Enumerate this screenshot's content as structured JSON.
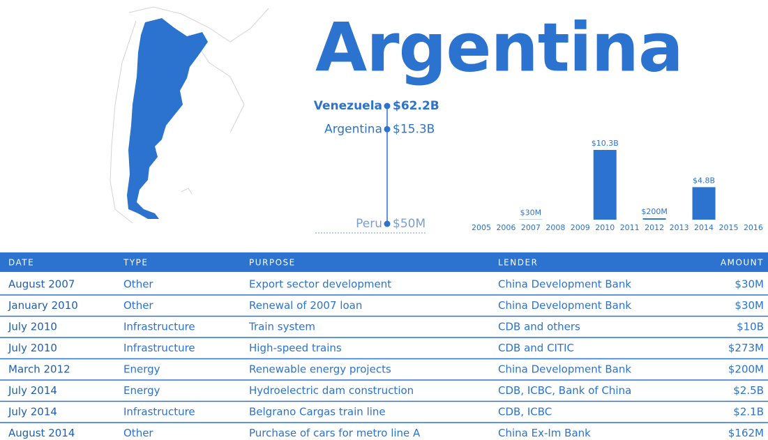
{
  "title": "Argentina",
  "ranking": {
    "log": true,
    "items": [
      {
        "name": "Venezuela",
        "value": 62.2,
        "label": "$62.2B"
      },
      {
        "name": "Argentina",
        "value": 15.3,
        "label": "$15.3B"
      },
      {
        "name": "Peru",
        "value": 0.05,
        "label": "$50M"
      }
    ]
  },
  "chart_data": {
    "type": "bar",
    "color": "#2b73cf",
    "categories": [
      "2005",
      "2006",
      "2007",
      "2008",
      "2009",
      "2010",
      "2011",
      "2012",
      "2013",
      "2014",
      "2015",
      "2016"
    ],
    "values": [
      0,
      0,
      0.03,
      0,
      0,
      10.3,
      0,
      0.2,
      0,
      4.8,
      0,
      0
    ],
    "value_labels": [
      null,
      null,
      "$30M",
      null,
      null,
      "$10.3B",
      null,
      "$200M",
      null,
      "$4.8B",
      null,
      null
    ]
  },
  "table": {
    "columns": [
      "DATE",
      "TYPE",
      "PURPOSE",
      "LENDER",
      "AMOUNT"
    ],
    "rows": [
      [
        "August 2007",
        "Other",
        "Export sector development",
        "China Development Bank",
        "$30M"
      ],
      [
        "January 2010",
        "Other",
        "Renewal of 2007 loan",
        "China Development Bank",
        "$30M"
      ],
      [
        "July 2010",
        "Infrastructure",
        "Train system",
        "CDB and others",
        "$10B"
      ],
      [
        "July 2010",
        "Infrastructure",
        "High-speed trains",
        "CDB and CITIC",
        "$273M"
      ],
      [
        "March 2012",
        "Energy",
        "Renewable energy projects",
        "China Development Bank",
        "$200M"
      ],
      [
        "July 2014",
        "Energy",
        "Hydroelectric dam construction",
        "CDB, ICBC, Bank of China",
        "$2.5B"
      ],
      [
        "July 2014",
        "Infrastructure",
        "Belgrano Cargas train line",
        "CDB, ICBC",
        "$2.1B"
      ],
      [
        "August 2014",
        "Other",
        "Purchase of cars for metro line A",
        "China Ex-Im Bank",
        "$162M"
      ]
    ]
  }
}
